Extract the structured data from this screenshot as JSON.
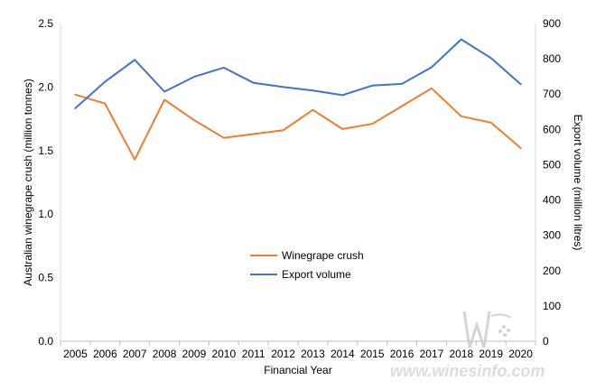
{
  "chart_data": {
    "type": "line",
    "categories": [
      "2005",
      "2006",
      "2007",
      "2008",
      "2009",
      "2010",
      "2011",
      "2012",
      "2013",
      "2014",
      "2015",
      "2016",
      "2017",
      "2018",
      "2019",
      "2020"
    ],
    "xlabel": "Financial Year",
    "ylabel_left": "Australian winegrape crush (million tonnes)",
    "ylabel_right": "Export volume (million litres)",
    "ylim_left": [
      0,
      2.5
    ],
    "ylim_right": [
      0,
      900
    ],
    "yticks_left": [
      "0.0",
      "0.5",
      "1.0",
      "1.5",
      "2.0",
      "2.5"
    ],
    "yticks_right": [
      "0",
      "100",
      "200",
      "300",
      "400",
      "500",
      "600",
      "700",
      "800",
      "900"
    ],
    "grid": false,
    "legend_position": "center",
    "series": [
      {
        "name": "Winegrape crush",
        "axis": "left",
        "color": "#ED7D31",
        "values": [
          1.94,
          1.87,
          1.43,
          1.9,
          1.74,
          1.6,
          1.63,
          1.66,
          1.82,
          1.67,
          1.71,
          1.85,
          1.99,
          1.77,
          1.72,
          1.52
        ]
      },
      {
        "name": "Export volume",
        "axis": "right",
        "color": "#4472C4",
        "values": [
          660,
          735,
          797,
          707,
          749,
          775,
          732,
          720,
          710,
          697,
          724,
          729,
          776,
          855,
          802,
          728
        ]
      }
    ]
  },
  "watermark": {
    "text": "www.winesinfo.com",
    "logo_text": "W"
  }
}
